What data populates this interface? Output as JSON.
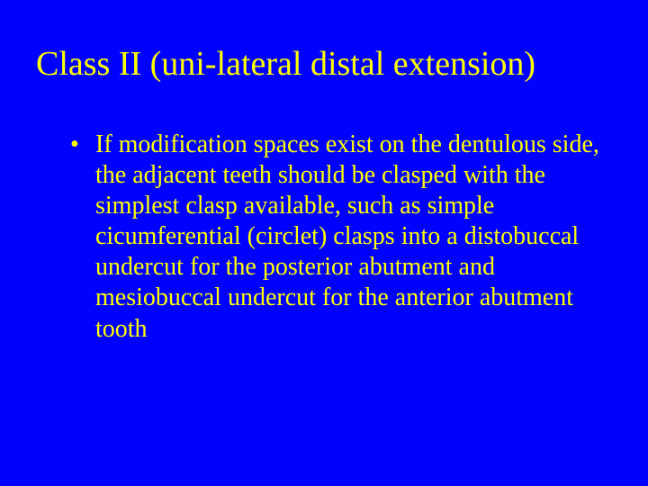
{
  "slide": {
    "background_color": "#0000ff",
    "text_color": "#ffff00",
    "font_family": "Times New Roman",
    "title": "Class II (uni-lateral distal extension)",
    "title_fontsize": 38,
    "body_fontsize": 28,
    "bullets": [
      "If modification spaces exist on the dentulous side, the adjacent teeth should be clasped with the simplest clasp available, such as simple cicumferential (circlet) clasps into a distobuccal undercut for the posterior abutment and mesiobuccal undercut for the anterior abutment tooth"
    ]
  }
}
